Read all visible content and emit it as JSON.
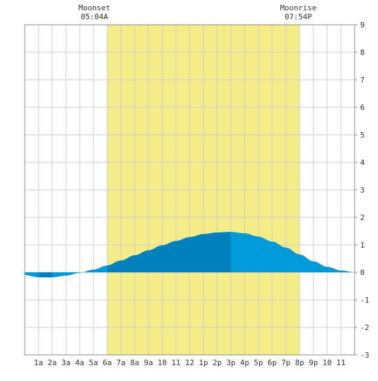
{
  "chart_data": {
    "type": "area",
    "annotations": [
      {
        "name": "moonset",
        "label": "Moonset",
        "time": "05:04A",
        "hour": 5.07
      },
      {
        "name": "moonrise",
        "label": "Moonrise",
        "time": "07:54P",
        "hour": 19.9
      }
    ],
    "shaded_band": {
      "from_hour": 6.0,
      "to_hour": 20.0,
      "color": "#f5ec8a"
    },
    "x_tick_labels": [
      "1a",
      "2a",
      "3a",
      "4a",
      "5a",
      "6a",
      "7a",
      "8a",
      "9a",
      "10",
      "11",
      "12",
      "1p",
      "2p",
      "3p",
      "4p",
      "5p",
      "6p",
      "7p",
      "8p",
      "9p",
      "10",
      "11"
    ],
    "xlim": [
      0,
      24
    ],
    "ylim": [
      -3,
      9
    ],
    "y_ticks": [
      -3,
      -2,
      -1,
      0,
      1,
      2,
      3,
      4,
      5,
      6,
      7,
      8,
      9
    ],
    "y_axis_side": "right",
    "grid": true,
    "series": [
      {
        "x": [
          0,
          1,
          2,
          3,
          4,
          5,
          6,
          7,
          8,
          9,
          10,
          11,
          12,
          13,
          14,
          15,
          16,
          17,
          18,
          19,
          20,
          21,
          22,
          23,
          24
        ],
        "y": [
          -0.1,
          -0.18,
          -0.18,
          -0.12,
          -0.02,
          0.1,
          0.25,
          0.43,
          0.62,
          0.8,
          0.98,
          1.14,
          1.28,
          1.39,
          1.45,
          1.47,
          1.42,
          1.3,
          1.12,
          0.9,
          0.65,
          0.4,
          0.2,
          0.07,
          0.0
        ]
      }
    ],
    "colors": {
      "fill_light": "#0099d9",
      "fill_dark": "#0080bc",
      "grid": "#cccccc",
      "frame": "#888888"
    },
    "shade_dark_ranges": [
      [
        1,
        2
      ],
      [
        6,
        15
      ]
    ]
  }
}
